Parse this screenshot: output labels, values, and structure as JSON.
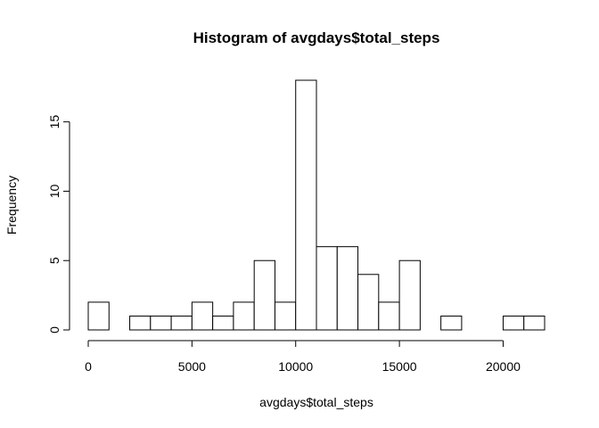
{
  "chart_data": {
    "type": "bar",
    "title": "Histogram of avgdays$total_steps",
    "xlabel": "avgdays$total_steps",
    "ylabel": "Frequency",
    "bin_width": 1000,
    "bins": [
      {
        "start": 0,
        "end": 1000,
        "count": 2
      },
      {
        "start": 1000,
        "end": 2000,
        "count": 0
      },
      {
        "start": 2000,
        "end": 3000,
        "count": 1
      },
      {
        "start": 3000,
        "end": 4000,
        "count": 1
      },
      {
        "start": 4000,
        "end": 5000,
        "count": 1
      },
      {
        "start": 5000,
        "end": 6000,
        "count": 2
      },
      {
        "start": 6000,
        "end": 7000,
        "count": 1
      },
      {
        "start": 7000,
        "end": 8000,
        "count": 2
      },
      {
        "start": 8000,
        "end": 9000,
        "count": 5
      },
      {
        "start": 9000,
        "end": 10000,
        "count": 2
      },
      {
        "start": 10000,
        "end": 11000,
        "count": 18
      },
      {
        "start": 11000,
        "end": 12000,
        "count": 6
      },
      {
        "start": 12000,
        "end": 13000,
        "count": 6
      },
      {
        "start": 13000,
        "end": 14000,
        "count": 4
      },
      {
        "start": 14000,
        "end": 15000,
        "count": 2
      },
      {
        "start": 15000,
        "end": 16000,
        "count": 5
      },
      {
        "start": 16000,
        "end": 17000,
        "count": 0
      },
      {
        "start": 17000,
        "end": 18000,
        "count": 1
      },
      {
        "start": 18000,
        "end": 19000,
        "count": 0
      },
      {
        "start": 19000,
        "end": 20000,
        "count": 0
      },
      {
        "start": 20000,
        "end": 21000,
        "count": 1
      },
      {
        "start": 21000,
        "end": 22000,
        "count": 1
      }
    ],
    "xlim": [
      0,
      22000
    ],
    "ylim": [
      0,
      18
    ],
    "x_ticks": [
      0,
      5000,
      10000,
      15000,
      20000
    ],
    "x_tick_labels": [
      "0",
      "5000",
      "10000",
      "15000",
      "20000"
    ],
    "y_ticks": [
      0,
      5,
      10,
      15
    ],
    "y_tick_labels": [
      "0",
      "5",
      "10",
      "15"
    ],
    "grid": false,
    "legend": "none"
  }
}
